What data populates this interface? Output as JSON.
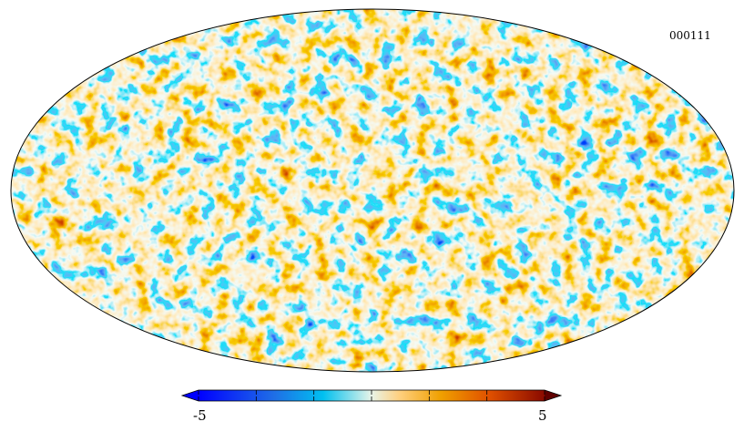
{
  "map": {
    "id_label": "000111",
    "projection": "mollweide",
    "style": "random CMB-like temperature fluctuation field"
  },
  "colorbar": {
    "min_label": "-5",
    "max_label": "5",
    "min_value": -5,
    "max_value": 5,
    "colors": [
      "#0000ff",
      "#1f6fe6",
      "#00c0f0",
      "#e8f4e8",
      "#ffd080",
      "#f0a000",
      "#e05000",
      "#a01000",
      "#600000"
    ]
  }
}
